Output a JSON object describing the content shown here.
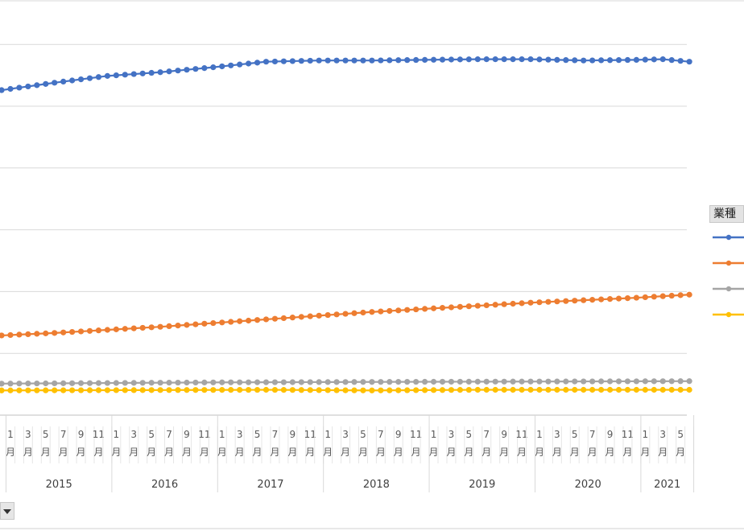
{
  "legend": {
    "title": "業種"
  },
  "controls": {
    "dropdown_icon": "triangle-down-icon"
  },
  "chart_data": {
    "type": "line",
    "title": "",
    "xlabel": "",
    "ylabel": "",
    "grid": true,
    "legend_position": "right",
    "x_month_tick_labels": [
      "1",
      "3",
      "5",
      "7",
      "9",
      "11"
    ],
    "x_month_suffix": "月",
    "x_years": [
      "2015",
      "2016",
      "2017",
      "2018",
      "2019",
      "2020",
      "2021"
    ],
    "x_start": "2014-12",
    "x_end": "2021-06",
    "ylim": [
      0,
      7
    ],
    "series": [
      {
        "color": "#4472c4",
        "knots": [
          [
            "2014-12",
            5.26
          ],
          [
            "2015-06",
            5.38
          ],
          [
            "2015-12",
            5.49
          ],
          [
            "2016-06",
            5.55
          ],
          [
            "2016-12",
            5.63
          ],
          [
            "2017-06",
            5.72
          ],
          [
            "2017-12",
            5.74
          ],
          [
            "2018-06",
            5.74
          ],
          [
            "2018-12",
            5.75
          ],
          [
            "2019-06",
            5.76
          ],
          [
            "2019-12",
            5.76
          ],
          [
            "2020-06",
            5.74
          ],
          [
            "2020-12",
            5.75
          ],
          [
            "2021-03",
            5.76
          ],
          [
            "2021-06",
            5.72
          ]
        ]
      },
      {
        "color": "#ed7d31",
        "knots": [
          [
            "2014-12",
            1.29
          ],
          [
            "2015-06",
            1.33
          ],
          [
            "2015-12",
            1.38
          ],
          [
            "2016-06",
            1.43
          ],
          [
            "2016-12",
            1.49
          ],
          [
            "2017-06",
            1.55
          ],
          [
            "2017-12",
            1.61
          ],
          [
            "2018-06",
            1.67
          ],
          [
            "2018-12",
            1.72
          ],
          [
            "2019-06",
            1.77
          ],
          [
            "2019-12",
            1.82
          ],
          [
            "2020-06",
            1.86
          ],
          [
            "2020-12",
            1.9
          ],
          [
            "2021-06",
            1.95
          ]
        ]
      },
      {
        "color": "#a5a5a5",
        "knots": [
          [
            "2014-12",
            0.51
          ],
          [
            "2016-12",
            0.53
          ],
          [
            "2018-12",
            0.54
          ],
          [
            "2021-06",
            0.55
          ]
        ]
      },
      {
        "color": "#ffc000",
        "knots": [
          [
            "2014-12",
            0.4
          ],
          [
            "2017-06",
            0.41
          ],
          [
            "2018-06",
            0.4
          ],
          [
            "2019-06",
            0.41
          ],
          [
            "2021-06",
            0.41
          ]
        ]
      }
    ]
  }
}
